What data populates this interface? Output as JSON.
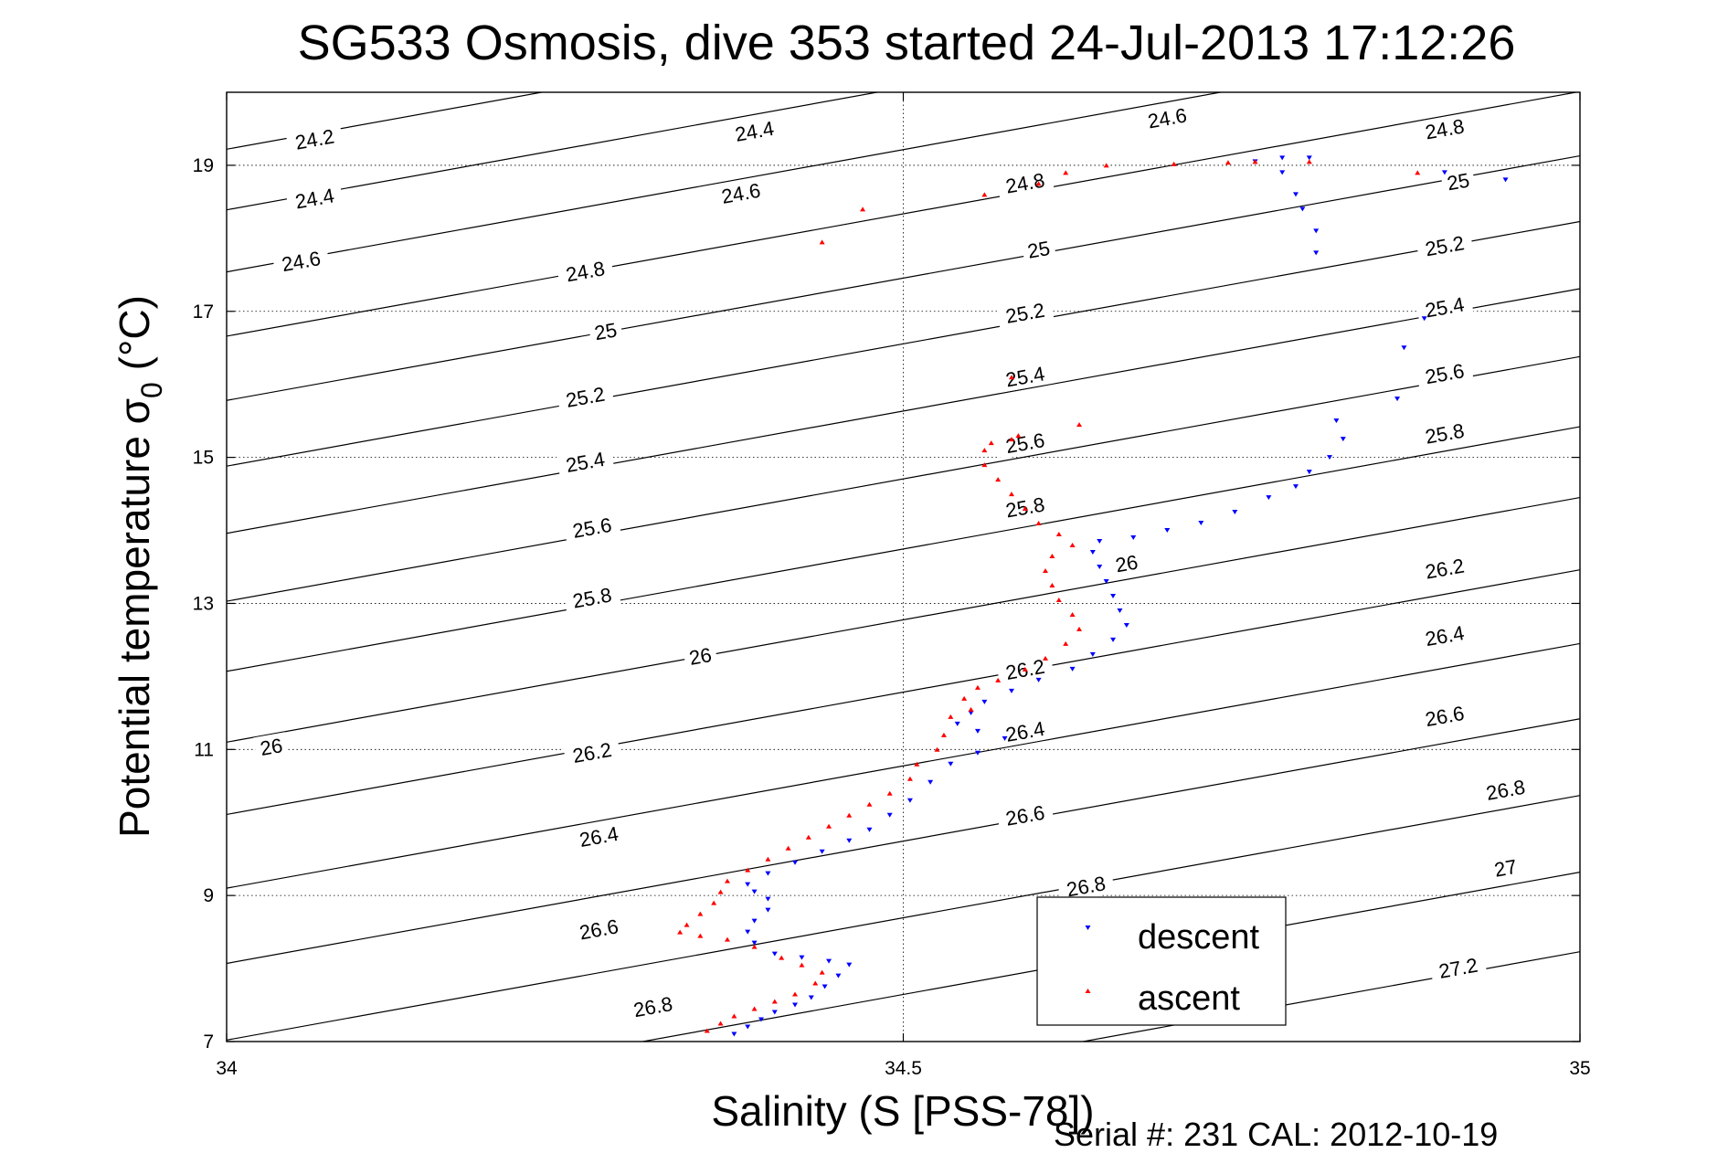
{
  "chart_data": {
    "type": "scatter",
    "title": "SG533 Osmosis, dive 353 started 24-Jul-2013 17:12:26",
    "xlabel": "Salinity (S [PSS-78])",
    "ylabel_main": "Potential temperature σ",
    "ylabel_subscript": "0",
    "ylabel_units": " (°C)",
    "xlim": [
      34,
      35
    ],
    "ylim": [
      7,
      20
    ],
    "x_ticks": [
      34,
      34.5,
      35
    ],
    "x_tick_labels": [
      "34",
      "34.5",
      "35"
    ],
    "y_ticks": [
      7,
      9,
      11,
      13,
      15,
      17,
      19
    ],
    "y_tick_labels": [
      "7",
      "9",
      "11",
      "13",
      "15",
      "17",
      "19"
    ],
    "grid": "dotted at ticks",
    "legend_position": "bottom-right",
    "footer": "Serial #: 231  CAL: 2012-10-19",
    "density_contours": {
      "levels": [
        24.2,
        24.4,
        24.6,
        24.8,
        25,
        25.2,
        25.4,
        25.6,
        25.8,
        26,
        26.2,
        26.4,
        26.6,
        26.8,
        27,
        27.2
      ],
      "slope_degC_per_psu": 3.35,
      "t_at_s34": {
        "24.2": 19.22,
        "24.4": 18.39,
        "24.6": 17.54,
        "24.8": 16.66,
        "25": 15.78,
        "25.2": 14.88,
        "25.4": 13.96,
        "25.6": 13.03,
        "25.8": 12.07,
        "26": 11.1,
        "26.2": 10.11,
        "26.4": 9.1,
        "26.6": 8.07,
        "26.8": 7.02,
        "27": 5.97,
        "27.2": 4.88
      },
      "labels": [
        {
          "text": "24.2",
          "s": 34.065,
          "t": 19.36
        },
        {
          "text": "24.4",
          "s": 34.065,
          "t": 18.55
        },
        {
          "text": "24.6",
          "s": 34.055,
          "t": 17.69
        },
        {
          "text": "24.4",
          "s": 34.39,
          "t": 19.47
        },
        {
          "text": "24.6",
          "s": 34.38,
          "t": 18.62
        },
        {
          "text": "24.8",
          "s": 34.265,
          "t": 17.55
        },
        {
          "text": "25",
          "s": 34.28,
          "t": 16.73
        },
        {
          "text": "25.2",
          "s": 34.265,
          "t": 15.83
        },
        {
          "text": "25.4",
          "s": 34.265,
          "t": 14.94
        },
        {
          "text": "25.6",
          "s": 34.27,
          "t": 14.04
        },
        {
          "text": "25.8",
          "s": 34.27,
          "t": 13.08
        },
        {
          "text": "26",
          "s": 34.35,
          "t": 12.28
        },
        {
          "text": "26",
          "s": 34.033,
          "t": 11.04
        },
        {
          "text": "26.2",
          "s": 34.27,
          "t": 10.96
        },
        {
          "text": "26.4",
          "s": 34.275,
          "t": 9.81
        },
        {
          "text": "26.6",
          "s": 34.275,
          "t": 8.54
        },
        {
          "text": "26.8",
          "s": 34.315,
          "t": 7.48
        },
        {
          "text": "24.6",
          "s": 34.695,
          "t": 19.65
        },
        {
          "text": "24.8",
          "s": 34.59,
          "t": 18.76
        },
        {
          "text": "25",
          "s": 34.6,
          "t": 17.85
        },
        {
          "text": "25.2",
          "s": 34.59,
          "t": 16.98
        },
        {
          "text": "25.4",
          "s": 34.59,
          "t": 16.11
        },
        {
          "text": "25.6",
          "s": 34.59,
          "t": 15.2
        },
        {
          "text": "25.8",
          "s": 34.59,
          "t": 14.32
        },
        {
          "text": "26",
          "s": 34.665,
          "t": 13.55
        },
        {
          "text": "26.2",
          "s": 34.59,
          "t": 12.1
        },
        {
          "text": "26.4",
          "s": 34.59,
          "t": 11.25
        },
        {
          "text": "26.6",
          "s": 34.59,
          "t": 10.1
        },
        {
          "text": "26.8",
          "s": 34.635,
          "t": 9.13
        },
        {
          "text": "24.8",
          "s": 34.9,
          "t": 19.5
        },
        {
          "text": "25",
          "s": 34.91,
          "t": 18.78
        },
        {
          "text": "25.2",
          "s": 34.9,
          "t": 17.9
        },
        {
          "text": "25.4",
          "s": 34.9,
          "t": 17.06
        },
        {
          "text": "25.6",
          "s": 34.9,
          "t": 16.15
        },
        {
          "text": "25.8",
          "s": 34.9,
          "t": 15.33
        },
        {
          "text": "26.2",
          "s": 34.9,
          "t": 13.48
        },
        {
          "text": "26.4",
          "s": 34.9,
          "t": 12.56
        },
        {
          "text": "26.6",
          "s": 34.9,
          "t": 11.46
        },
        {
          "text": "26.8",
          "s": 34.945,
          "t": 10.45
        },
        {
          "text": "27",
          "s": 34.945,
          "t": 9.38
        },
        {
          "text": "27.2",
          "s": 34.91,
          "t": 8.01
        }
      ]
    },
    "series": [
      {
        "name": "descent",
        "color": "#0000ff",
        "marker": "triangle-down",
        "points": [
          [
            34.375,
            7.1
          ],
          [
            34.385,
            7.2
          ],
          [
            34.395,
            7.3
          ],
          [
            34.405,
            7.4
          ],
          [
            34.42,
            7.5
          ],
          [
            34.432,
            7.6
          ],
          [
            34.442,
            7.75
          ],
          [
            34.452,
            7.9
          ],
          [
            34.46,
            8.05
          ],
          [
            34.445,
            8.1
          ],
          [
            34.425,
            8.15
          ],
          [
            34.405,
            8.2
          ],
          [
            34.39,
            8.35
          ],
          [
            34.385,
            8.5
          ],
          [
            34.39,
            8.65
          ],
          [
            34.4,
            8.8
          ],
          [
            34.4,
            8.95
          ],
          [
            34.39,
            9.05
          ],
          [
            34.385,
            9.15
          ],
          [
            34.4,
            9.3
          ],
          [
            34.42,
            9.45
          ],
          [
            34.44,
            9.6
          ],
          [
            34.46,
            9.75
          ],
          [
            34.475,
            9.9
          ],
          [
            34.49,
            10.1
          ],
          [
            34.505,
            10.3
          ],
          [
            34.52,
            10.55
          ],
          [
            34.535,
            10.8
          ],
          [
            34.555,
            10.95
          ],
          [
            34.575,
            11.15
          ],
          [
            34.555,
            11.25
          ],
          [
            34.54,
            11.35
          ],
          [
            34.55,
            11.5
          ],
          [
            34.56,
            11.65
          ],
          [
            34.58,
            11.8
          ],
          [
            34.6,
            11.95
          ],
          [
            34.625,
            12.1
          ],
          [
            34.64,
            12.3
          ],
          [
            34.655,
            12.5
          ],
          [
            34.665,
            12.7
          ],
          [
            34.66,
            12.9
          ],
          [
            34.655,
            13.1
          ],
          [
            34.65,
            13.3
          ],
          [
            34.645,
            13.5
          ],
          [
            34.64,
            13.7
          ],
          [
            34.645,
            13.85
          ],
          [
            34.67,
            13.9
          ],
          [
            34.695,
            14.0
          ],
          [
            34.72,
            14.1
          ],
          [
            34.745,
            14.25
          ],
          [
            34.77,
            14.45
          ],
          [
            34.79,
            14.6
          ],
          [
            34.8,
            14.8
          ],
          [
            34.815,
            15.0
          ],
          [
            34.825,
            15.25
          ],
          [
            34.82,
            15.5
          ],
          [
            34.865,
            15.8
          ],
          [
            34.87,
            16.5
          ],
          [
            34.885,
            16.9
          ],
          [
            34.805,
            17.8
          ],
          [
            34.805,
            18.1
          ],
          [
            34.795,
            18.4
          ],
          [
            34.79,
            18.6
          ],
          [
            34.78,
            18.9
          ],
          [
            34.76,
            19.05
          ],
          [
            34.8,
            19.1
          ],
          [
            34.78,
            19.1
          ],
          [
            34.9,
            18.9
          ],
          [
            34.945,
            18.8
          ]
        ]
      },
      {
        "name": "ascent",
        "color": "#ff0000",
        "marker": "triangle-up",
        "points": [
          [
            34.355,
            7.15
          ],
          [
            34.365,
            7.25
          ],
          [
            34.375,
            7.35
          ],
          [
            34.39,
            7.45
          ],
          [
            34.405,
            7.55
          ],
          [
            34.42,
            7.65
          ],
          [
            34.435,
            7.8
          ],
          [
            34.44,
            7.95
          ],
          [
            34.425,
            8.05
          ],
          [
            34.41,
            8.15
          ],
          [
            34.39,
            8.3
          ],
          [
            34.37,
            8.4
          ],
          [
            34.35,
            8.45
          ],
          [
            34.335,
            8.5
          ],
          [
            34.34,
            8.6
          ],
          [
            34.35,
            8.75
          ],
          [
            34.36,
            8.9
          ],
          [
            34.365,
            9.05
          ],
          [
            34.37,
            9.2
          ],
          [
            34.385,
            9.35
          ],
          [
            34.4,
            9.5
          ],
          [
            34.415,
            9.65
          ],
          [
            34.43,
            9.8
          ],
          [
            34.445,
            9.95
          ],
          [
            34.46,
            10.1
          ],
          [
            34.475,
            10.25
          ],
          [
            34.49,
            10.4
          ],
          [
            34.505,
            10.6
          ],
          [
            34.51,
            10.8
          ],
          [
            34.525,
            11.0
          ],
          [
            34.53,
            11.2
          ],
          [
            34.535,
            11.45
          ],
          [
            34.55,
            11.55
          ],
          [
            34.545,
            11.7
          ],
          [
            34.555,
            11.85
          ],
          [
            34.57,
            11.95
          ],
          [
            34.59,
            12.1
          ],
          [
            34.605,
            12.25
          ],
          [
            34.62,
            12.45
          ],
          [
            34.63,
            12.65
          ],
          [
            34.625,
            12.85
          ],
          [
            34.615,
            13.05
          ],
          [
            34.61,
            13.25
          ],
          [
            34.605,
            13.45
          ],
          [
            34.61,
            13.65
          ],
          [
            34.625,
            13.8
          ],
          [
            34.615,
            13.95
          ],
          [
            34.6,
            14.1
          ],
          [
            34.59,
            14.3
          ],
          [
            34.58,
            14.5
          ],
          [
            34.57,
            14.7
          ],
          [
            34.56,
            14.9
          ],
          [
            34.56,
            15.1
          ],
          [
            34.565,
            15.2
          ],
          [
            34.58,
            15.25
          ],
          [
            34.585,
            15.3
          ],
          [
            34.63,
            15.45
          ],
          [
            34.58,
            16.1
          ],
          [
            34.47,
            18.4
          ],
          [
            34.56,
            18.6
          ],
          [
            34.6,
            18.75
          ],
          [
            34.62,
            18.9
          ],
          [
            34.65,
            19.0
          ],
          [
            34.7,
            19.02
          ],
          [
            34.74,
            19.04
          ],
          [
            34.76,
            19.05
          ],
          [
            34.8,
            19.05
          ],
          [
            34.88,
            18.9
          ],
          [
            34.44,
            17.95
          ]
        ]
      }
    ]
  }
}
